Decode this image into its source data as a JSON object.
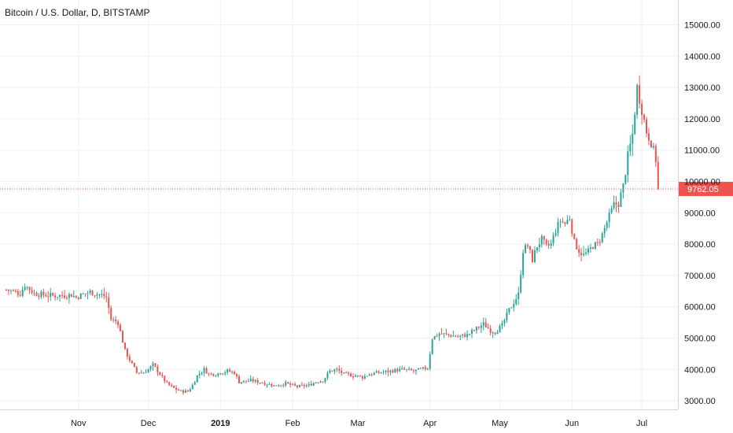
{
  "header": {
    "title": "Bitcoin / U.S. Dollar, D, BITSTAMP"
  },
  "colors": {
    "up": "#26a69a",
    "down": "#ef5350",
    "grid": "#eef0f3",
    "axis_text": "#131722",
    "last_price_line": "#ef5350"
  },
  "chart_data": {
    "type": "candlestick",
    "title": "Bitcoin / U.S. Dollar, D, BITSTAMP",
    "ylim": [
      2500,
      15200
    ],
    "y_ticks": [
      "3000.00",
      "4000.00",
      "5000.00",
      "6000.00",
      "7000.00",
      "8000.00",
      "9000.00",
      "10000.00",
      "11000.00",
      "12000.00",
      "13000.00",
      "14000.00",
      "15000.00"
    ],
    "x_ticks": [
      {
        "label": "Nov",
        "day": 31,
        "bold": false
      },
      {
        "label": "Dec",
        "day": 61,
        "bold": false
      },
      {
        "label": "2019",
        "day": 92,
        "bold": true
      },
      {
        "label": "Feb",
        "day": 123,
        "bold": false
      },
      {
        "label": "Mar",
        "day": 151,
        "bold": false
      },
      {
        "label": "Apr",
        "day": 182,
        "bold": false
      },
      {
        "label": "May",
        "day": 212,
        "bold": false
      },
      {
        "label": "Jun",
        "day": 243,
        "bold": false
      },
      {
        "label": "Jul",
        "day": 273,
        "bold": false
      }
    ],
    "last_price": "9762.05",
    "last_value": 9762.05,
    "series": [
      {
        "name": "",
        "points": [
          [
            0,
            6550
          ],
          [
            6,
            6420
          ],
          [
            8,
            6700
          ],
          [
            12,
            6420
          ],
          [
            20,
            6350
          ],
          [
            28,
            6380
          ],
          [
            30,
            6300
          ],
          [
            33,
            6400
          ],
          [
            36,
            6480
          ],
          [
            38,
            6420
          ],
          [
            41,
            6380
          ],
          [
            43,
            6310
          ],
          [
            45,
            5600
          ],
          [
            48,
            5500
          ],
          [
            51,
            4600
          ],
          [
            53,
            4300
          ],
          [
            56,
            3900
          ],
          [
            59,
            3900
          ],
          [
            61,
            4000
          ],
          [
            63,
            4150
          ],
          [
            66,
            3850
          ],
          [
            69,
            3550
          ],
          [
            72,
            3400
          ],
          [
            75,
            3300
          ],
          [
            78,
            3300
          ],
          [
            80,
            3500
          ],
          [
            82,
            3800
          ],
          [
            85,
            4000
          ],
          [
            87,
            3850
          ],
          [
            90,
            3850
          ],
          [
            92,
            3900
          ],
          [
            95,
            3950
          ],
          [
            98,
            3900
          ],
          [
            100,
            3600
          ],
          [
            105,
            3650
          ],
          [
            110,
            3580
          ],
          [
            115,
            3480
          ],
          [
            120,
            3550
          ],
          [
            125,
            3450
          ],
          [
            130,
            3500
          ],
          [
            133,
            3600
          ],
          [
            136,
            3650
          ],
          [
            139,
            3950
          ],
          [
            142,
            4000
          ],
          [
            145,
            3850
          ],
          [
            150,
            3800
          ],
          [
            153,
            3750
          ],
          [
            156,
            3850
          ],
          [
            160,
            3900
          ],
          [
            165,
            3950
          ],
          [
            170,
            4000
          ],
          [
            175,
            3950
          ],
          [
            178,
            4000
          ],
          [
            181,
            4050
          ],
          [
            183,
            5000
          ],
          [
            186,
            5150
          ],
          [
            190,
            5100
          ],
          [
            194,
            5050
          ],
          [
            198,
            5100
          ],
          [
            201,
            5250
          ],
          [
            205,
            5450
          ],
          [
            208,
            5250
          ],
          [
            210,
            5200
          ],
          [
            213,
            5400
          ],
          [
            216,
            5900
          ],
          [
            220,
            6400
          ],
          [
            222,
            7800
          ],
          [
            224,
            7950
          ],
          [
            226,
            7500
          ],
          [
            228,
            7950
          ],
          [
            230,
            8150
          ],
          [
            232,
            7900
          ],
          [
            234,
            8000
          ],
          [
            236,
            8450
          ],
          [
            238,
            8750
          ],
          [
            240,
            8650
          ],
          [
            242,
            8850
          ],
          [
            244,
            8050
          ],
          [
            246,
            7800
          ],
          [
            248,
            7650
          ],
          [
            250,
            7750
          ],
          [
            252,
            7950
          ],
          [
            254,
            8000
          ],
          [
            256,
            8300
          ],
          [
            258,
            8700
          ],
          [
            261,
            9250
          ],
          [
            263,
            9300
          ],
          [
            265,
            9850
          ],
          [
            267,
            10800
          ],
          [
            269,
            11500
          ],
          [
            271,
            13000
          ],
          [
            273,
            12300
          ],
          [
            275,
            11600
          ],
          [
            277,
            11250
          ],
          [
            279,
            10700
          ],
          [
            280,
            9762.05
          ]
        ]
      }
    ]
  }
}
